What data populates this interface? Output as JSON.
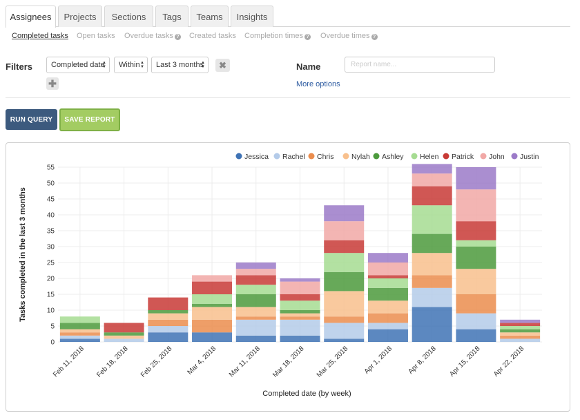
{
  "tabs": [
    {
      "label": "Assignees",
      "active": true
    },
    {
      "label": "Projects",
      "active": false
    },
    {
      "label": "Sections",
      "active": false
    },
    {
      "label": "Tags",
      "active": false
    },
    {
      "label": "Teams",
      "active": false
    },
    {
      "label": "Insights",
      "active": false
    }
  ],
  "subtabs": [
    {
      "label": "Completed tasks",
      "active": true,
      "help": false
    },
    {
      "label": "Open tasks",
      "active": false,
      "help": false
    },
    {
      "label": "Overdue tasks",
      "active": false,
      "help": true
    },
    {
      "label": "Created tasks",
      "active": false,
      "help": false
    },
    {
      "label": "Completion times",
      "active": false,
      "help": true
    },
    {
      "label": "Overdue times",
      "active": false,
      "help": true
    }
  ],
  "help_icon": "?",
  "filters": {
    "label": "Filters",
    "field": "Completed date",
    "operator": "Within",
    "range": "Last 3 months",
    "remove_icon": "close-icon",
    "add_icon": "plus-icon"
  },
  "name": {
    "label": "Name",
    "placeholder": "Report name..."
  },
  "more_options": "More options",
  "buttons": {
    "run": "RUN QUERY",
    "save": "SAVE REPORT"
  },
  "colors": {
    "Jessica": "#3f73b5",
    "Rachel": "#b4cbe9",
    "Chris": "#eb8d4e",
    "Nylah": "#f8c08d",
    "Ashley": "#4c9a3c",
    "Helen": "#a6dc92",
    "Patrick": "#c83a36",
    "John": "#f1a8a6",
    "Justin": "#9b7ac8"
  },
  "chart_data": {
    "type": "bar",
    "stacked": true,
    "xlabel": "Completed date (by week)",
    "ylabel": "Tasks completed in the last 3 months",
    "ylim": [
      0,
      55
    ],
    "yticks": [
      0,
      5,
      10,
      15,
      20,
      25,
      30,
      35,
      40,
      45,
      50,
      55
    ],
    "legend_position": "top-right",
    "grid": true,
    "categories": [
      "Feb 11, 2018",
      "Feb 18, 2018",
      "Feb 25, 2018",
      "Mar 4, 2018",
      "Mar 11, 2018",
      "Mar 18, 2018",
      "Mar 25, 2018",
      "Apr 1, 2018",
      "Apr 8, 2018",
      "Apr 15, 2018",
      "Apr 22, 2018"
    ],
    "series": [
      {
        "name": "Jessica",
        "values": [
          1,
          0,
          3,
          3,
          2,
          2,
          1,
          4,
          11,
          4,
          0
        ]
      },
      {
        "name": "Rachel",
        "values": [
          1,
          1,
          2,
          0,
          5,
          5,
          5,
          2,
          6,
          5,
          1
        ]
      },
      {
        "name": "Chris",
        "values": [
          1,
          0,
          2,
          4,
          1,
          1,
          2,
          3,
          4,
          6,
          1
        ]
      },
      {
        "name": "Nylah",
        "values": [
          1,
          1,
          2,
          4,
          3,
          1,
          8,
          4,
          7,
          8,
          1
        ]
      },
      {
        "name": "Ashley",
        "values": [
          2,
          1,
          1,
          1,
          4,
          1,
          6,
          4,
          6,
          7,
          1
        ]
      },
      {
        "name": "Helen",
        "values": [
          2,
          0,
          0,
          3,
          3,
          3,
          6,
          3,
          9,
          2,
          1
        ]
      },
      {
        "name": "Patrick",
        "values": [
          0,
          3,
          4,
          4,
          3,
          2,
          4,
          1,
          6,
          6,
          1
        ]
      },
      {
        "name": "John",
        "values": [
          0,
          0,
          0,
          2,
          2,
          4,
          6,
          4,
          4,
          10,
          0
        ]
      },
      {
        "name": "Justin",
        "values": [
          0,
          0,
          0,
          0,
          2,
          1,
          5,
          3,
          3,
          7,
          1
        ]
      }
    ]
  }
}
